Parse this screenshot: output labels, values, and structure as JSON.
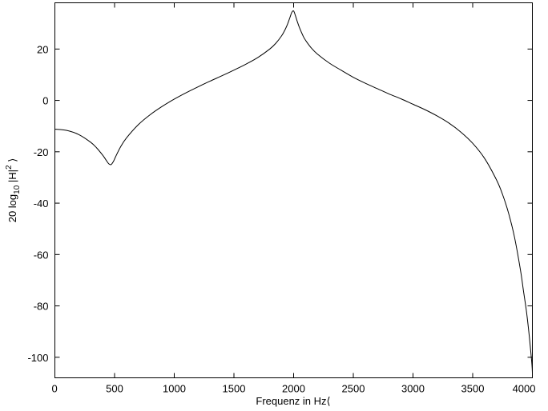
{
  "chart_data": {
    "type": "line",
    "title": "",
    "xlabel": "Frequenz in Hz",
    "xlabel_suffix_glyph": "⟨",
    "ylabel": {
      "prefix": "20 log",
      "subscript": "10",
      "middle": " |H|",
      "superscript": "2",
      "suffix_glyph": " ⟩"
    },
    "xlim": [
      0,
      4000
    ],
    "ylim": [
      -108,
      38
    ],
    "xticks": [
      0,
      500,
      1000,
      1500,
      2000,
      2500,
      3000,
      3500,
      4000
    ],
    "yticks": [
      20,
      0,
      -20,
      -40,
      -60,
      -80,
      -100
    ],
    "grid": false,
    "legend": "none",
    "series": [
      {
        "x": [
          0,
          100,
          200,
          300,
          350,
          400,
          430,
          450,
          470,
          490,
          510,
          550,
          600,
          700,
          800,
          900,
          1000,
          1100,
          1200,
          1300,
          1400,
          1500,
          1600,
          1700,
          1800,
          1850,
          1900,
          1930,
          1950,
          1970,
          1985,
          2000,
          2015,
          2030,
          2050,
          2080,
          2100,
          2150,
          2200,
          2300,
          2400,
          2500,
          2600,
          2700,
          2800,
          2900,
          3000,
          3100,
          3200,
          3300,
          3400,
          3500,
          3600,
          3700,
          3750,
          3800,
          3850,
          3900,
          3925,
          3950,
          3970,
          3985,
          3993,
          3998,
          4000
        ],
        "y": [
          -11.2,
          -11.7,
          -13.3,
          -16.3,
          -18.5,
          -21.3,
          -23.3,
          -24.6,
          -25.0,
          -23.8,
          -21.8,
          -18.1,
          -14.6,
          -9.4,
          -5.5,
          -2.3,
          0.5,
          3.0,
          5.3,
          7.5,
          9.6,
          11.8,
          14.1,
          16.7,
          20.0,
          22.2,
          25.2,
          27.7,
          29.8,
          32.4,
          34.3,
          34.8,
          33.0,
          30.8,
          28.2,
          25.0,
          23.4,
          20.3,
          18.0,
          14.5,
          11.7,
          9.0,
          6.7,
          4.6,
          2.5,
          0.6,
          -1.5,
          -3.6,
          -6.0,
          -8.8,
          -12.3,
          -16.7,
          -22.6,
          -31.0,
          -36.6,
          -43.8,
          -53.2,
          -66.0,
          -74.0,
          -82.0,
          -90.0,
          -97.0,
          -101.0,
          -104.0,
          -106.0
        ]
      }
    ]
  }
}
